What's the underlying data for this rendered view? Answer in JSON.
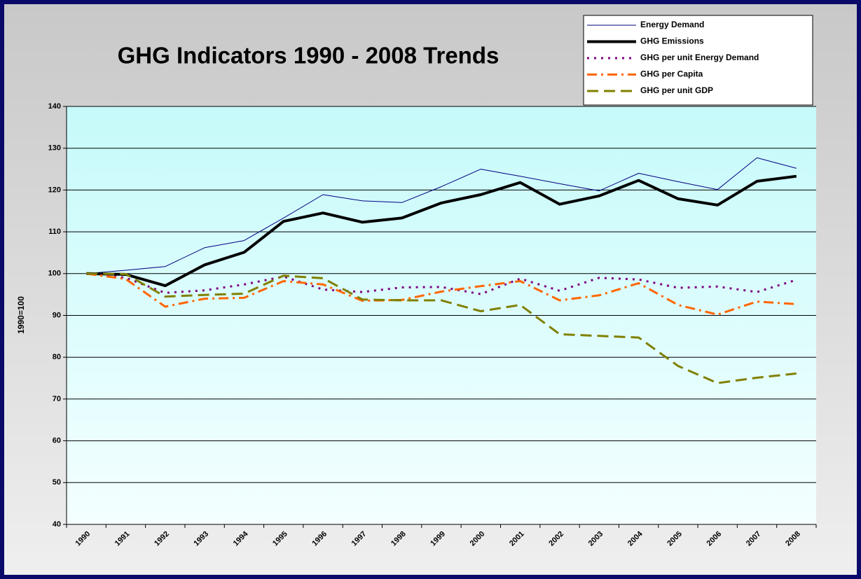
{
  "chart_data": {
    "type": "line",
    "title": "GHG Indicators 1990 - 2008 Trends",
    "y_label": "1990=100",
    "categories": [
      "1990",
      "1991",
      "1992",
      "1993",
      "1994",
      "1995",
      "1996",
      "1997",
      "1998",
      "1999",
      "2000",
      "2001",
      "2002",
      "2003",
      "2004",
      "2005",
      "2006",
      "2007",
      "2008"
    ],
    "ylim": [
      40,
      140
    ],
    "yticks": [
      40,
      50,
      60,
      70,
      80,
      90,
      100,
      110,
      120,
      130,
      140
    ],
    "grid": true,
    "series": [
      {
        "name": "Energy Demand",
        "color": "#000080",
        "values": [
          100,
          100.8,
          101.7,
          106.2,
          107.9,
          113.3,
          118.9,
          117.4,
          117,
          120.8,
          125,
          123.3,
          121.5,
          119.8,
          124,
          122,
          120.1,
          127.7,
          125.2
        ]
      },
      {
        "name": "GHG Emissions",
        "color": "#000000",
        "values": [
          100,
          99.8,
          97.1,
          102.1,
          105.1,
          112.5,
          114.5,
          112.3,
          113.3,
          116.9,
          118.9,
          121.8,
          116.6,
          118.6,
          122.3,
          117.9,
          116.4,
          122.1,
          123.3
        ]
      },
      {
        "name": "GHG per unit Energy Demand",
        "color": "#800080",
        "values": [
          100,
          99,
          95.4,
          96,
          97.4,
          99.3,
          96.2,
          95.6,
          96.7,
          96.8,
          95.1,
          98.8,
          95.9,
          99,
          98.6,
          96.6,
          96.9,
          95.6,
          98.5
        ]
      },
      {
        "name": "GHG per Capita",
        "color": "#FF6600",
        "values": [
          100,
          98.7,
          92.1,
          94,
          94.2,
          98.2,
          97.4,
          93.5,
          93.7,
          95.7,
          97,
          98.2,
          93.6,
          94.8,
          97.7,
          92.5,
          90.2,
          93.3,
          92.7
        ]
      },
      {
        "name": "GHG per unit GDP",
        "color": "#808000",
        "values": [
          100,
          99.9,
          94.5,
          94.9,
          95.2,
          99.5,
          98.9,
          93.8,
          93.6,
          93.6,
          91.0,
          92.5,
          85.5,
          85.1,
          84.7,
          77.9,
          73.8,
          75.1,
          76.1
        ]
      }
    ]
  }
}
